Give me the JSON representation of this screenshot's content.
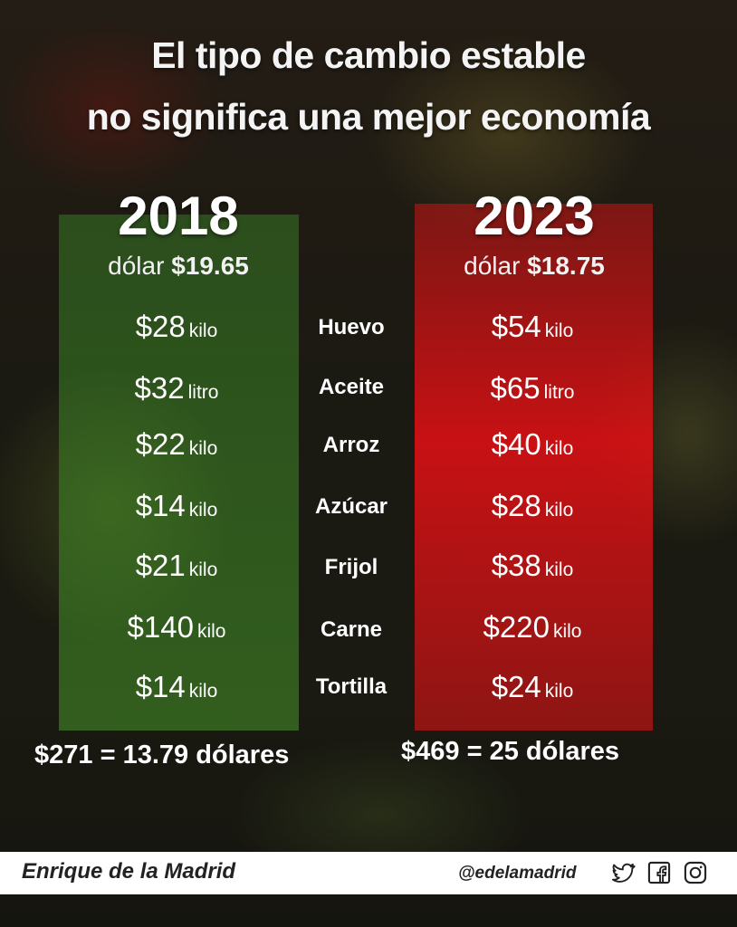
{
  "title": {
    "line1": "El tipo de cambio estable",
    "line2": "no significa una mejor economía"
  },
  "year_2018": {
    "year": "2018",
    "dollar_label": "dólar",
    "dollar_value": "$19.65",
    "total": "$271 = 13.79 dólares"
  },
  "year_2023": {
    "year": "2023",
    "dollar_label": "dólar",
    "dollar_value": "$18.75",
    "total": "$469 = 25 dólares"
  },
  "rows": [
    {
      "item": "Huevo",
      "p2018": "$28",
      "u2018": "kilo",
      "p2023": "$54",
      "u2023": "kilo"
    },
    {
      "item": "Aceite",
      "p2018": "$32",
      "u2018": "litro",
      "p2023": "$65",
      "u2023": "litro"
    },
    {
      "item": "Arroz",
      "p2018": "$22",
      "u2018": "kilo",
      "p2023": "$40",
      "u2023": "kilo"
    },
    {
      "item": "Azúcar",
      "p2018": "$14",
      "u2018": "kilo",
      "p2023": "$28",
      "u2023": "kilo"
    },
    {
      "item": "Frijol",
      "p2018": "$21",
      "u2018": "kilo",
      "p2023": "$38",
      "u2023": "kilo"
    },
    {
      "item": "Carne",
      "p2018": "$140",
      "u2018": "kilo",
      "p2023": "$220",
      "u2023": "kilo"
    },
    {
      "item": "Tortilla",
      "p2018": "$14",
      "u2018": "kilo",
      "p2023": "$24",
      "u2023": "kilo"
    }
  ],
  "footer": {
    "brand": "Enrique de la Madrid",
    "handle": "@edelamadrid",
    "icons": [
      "twitter-icon",
      "facebook-icon",
      "instagram-icon"
    ]
  },
  "colors": {
    "green_column": "#3c8c28",
    "red_column": "#e60f14",
    "text": "#ffffff"
  }
}
